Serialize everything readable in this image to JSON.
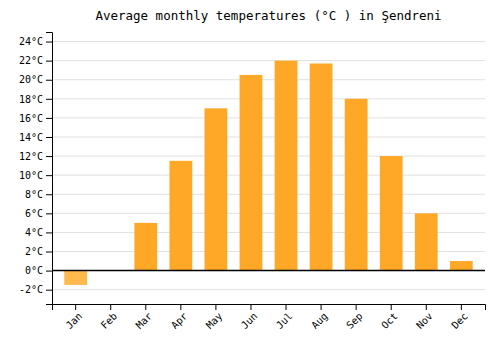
{
  "chart_data": {
    "type": "bar",
    "title": "Average monthly temperatures (°C ) in Şendreni",
    "categories": [
      "Jan",
      "Feb",
      "Mar",
      "Apr",
      "May",
      "Jun",
      "Jul",
      "Aug",
      "Sep",
      "Oct",
      "Nov",
      "Dec"
    ],
    "values": [
      -1.5,
      0.0,
      5.0,
      11.5,
      17.0,
      20.5,
      22.0,
      21.7,
      18.0,
      12.0,
      6.0,
      1.0
    ],
    "colors": [
      "#FFB94D",
      "#FFA726",
      "#FFA726",
      "#FFA726",
      "#FFA726",
      "#FFA726",
      "#FFA726",
      "#FFA726",
      "#FFA726",
      "#FFA726",
      "#FFA726",
      "#FFA726"
    ],
    "ylim": [
      -3.5,
      25
    ],
    "yticks": [
      {
        "value": -2,
        "label": "-2°C"
      },
      {
        "value": 0,
        "label": "0°C"
      },
      {
        "value": 2,
        "label": "2°C"
      },
      {
        "value": 4,
        "label": "4°C"
      },
      {
        "value": 6,
        "label": "6°C"
      },
      {
        "value": 8,
        "label": "8°C"
      },
      {
        "value": 10,
        "label": "10°C"
      },
      {
        "value": 12,
        "label": "12°C"
      },
      {
        "value": 14,
        "label": "14°C"
      },
      {
        "value": 16,
        "label": "16°C"
      },
      {
        "value": 18,
        "label": "18°C"
      },
      {
        "value": 20,
        "label": "20°C"
      },
      {
        "value": 22,
        "label": "22°C"
      },
      {
        "value": 24,
        "label": "24°C"
      }
    ],
    "grid": true
  }
}
